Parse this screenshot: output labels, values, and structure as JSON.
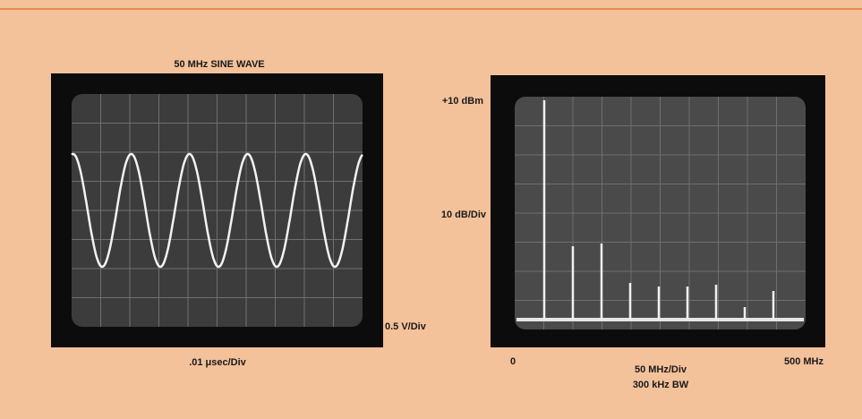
{
  "left_scope": {
    "title": "50 MHz SINE WAVE",
    "x_scale": ".01 μsec/Div",
    "y_scale": "0.5 V/Div"
  },
  "right_scope": {
    "top_level": "+10 dBm",
    "y_scale": "10 dB/Div",
    "x_start": "0",
    "x_end": "500 MHz",
    "x_scale": "50 MHz/Div",
    "bandwidth": "300 kHz BW"
  }
}
